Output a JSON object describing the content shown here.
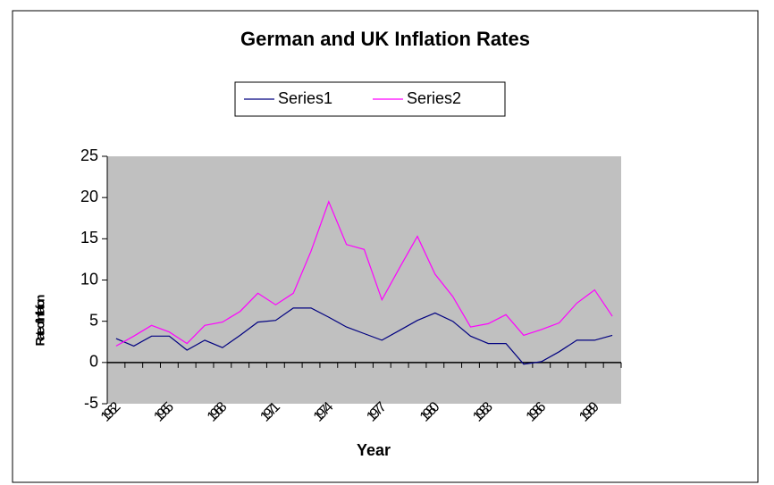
{
  "chart_data": {
    "type": "line",
    "title": "German and UK Inflation Rates",
    "x_label": "Year",
    "y_label": "Rate of Inflation",
    "categories": [
      "1962",
      null,
      null,
      "1965",
      null,
      null,
      "1968",
      null,
      null,
      "1971",
      null,
      null,
      "1974",
      null,
      null,
      "1977",
      null,
      null,
      "1980",
      null,
      null,
      "1983",
      null,
      null,
      "1986",
      null,
      null,
      "1989",
      null
    ],
    "series": [
      {
        "name": "Series1",
        "color": "#000080",
        "values": [
          2.9,
          2.0,
          3.2,
          3.2,
          1.5,
          2.7,
          1.8,
          3.3,
          4.9,
          5.1,
          6.6,
          6.6,
          5.5,
          4.3,
          3.5,
          2.7,
          3.9,
          5.1,
          6.0,
          5.0,
          3.2,
          2.3,
          2.3,
          -0.2,
          0.1,
          1.3,
          2.7,
          2.7,
          3.3
        ]
      },
      {
        "name": "Series2",
        "color": "#ff00ff",
        "values": [
          2.0,
          3.2,
          4.5,
          3.7,
          2.3,
          4.5,
          4.9,
          6.2,
          8.4,
          7.0,
          8.4,
          13.5,
          19.5,
          14.3,
          13.7,
          7.6,
          11.5,
          15.3,
          10.7,
          8.0,
          4.3,
          4.7,
          5.8,
          3.3,
          4.0,
          4.8,
          7.2,
          8.8,
          5.6
        ]
      }
    ],
    "ylim": [
      -5,
      25
    ],
    "yticks": [
      -5,
      0,
      5,
      10,
      15,
      20,
      25
    ],
    "plot_background": "#c0c0c0",
    "legend": "top"
  }
}
